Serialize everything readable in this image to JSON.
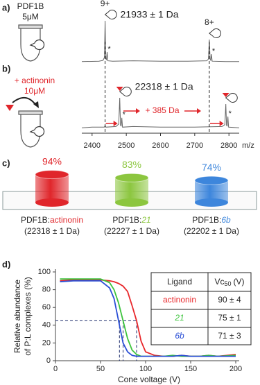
{
  "panel_labels": [
    "a)",
    "b)",
    "c)",
    "d)"
  ],
  "chart_data": [
    {
      "type": "spectrum",
      "sample": "PDF1B",
      "concentration": "5μM",
      "ligand_addition": "+ actinonin",
      "ligand_concentration": "10μM",
      "mass_shift": "+ 385 Da",
      "x_label": "m/z",
      "xlim": [
        2370,
        2830
      ],
      "xticks": [
        2400,
        2500,
        2600,
        2700,
        2800
      ],
      "spectra": [
        {
          "mass": "21933 ± 1 Da",
          "x": [
            2370,
            2420,
            2432,
            2436,
            2438,
            2440,
            2442,
            2444,
            2446,
            2460,
            2520,
            2600,
            2680,
            2735,
            2740,
            2742.6,
            2745,
            2747,
            2749,
            2751,
            2790,
            2830
          ],
          "values": [
            2,
            3,
            5,
            12,
            100,
            10,
            6,
            25,
            4,
            3,
            4,
            3,
            3,
            4,
            8,
            55,
            7,
            5,
            20,
            3,
            2,
            2
          ],
          "peaks": [
            {
              "label": "9+",
              "mz": 2438
            },
            {
              "label": "8+",
              "mz": 2742.6
            }
          ],
          "adducts": [
            {
              "label": "*",
              "mz": 2444
            },
            {
              "label": "*",
              "mz": 2749
            }
          ]
        },
        {
          "mass": "22318 ± 1 Da",
          "x": [
            2370,
            2400,
            2436,
            2438,
            2440,
            2470,
            2478,
            2480.8,
            2483,
            2485,
            2487,
            2489,
            2520,
            2600,
            2700,
            2780,
            2788,
            2790.8,
            2793,
            2795,
            2797,
            2799,
            2830
          ],
          "values": [
            2,
            3,
            3,
            6,
            3,
            4,
            8,
            50,
            6,
            5,
            18,
            3,
            4,
            3,
            3,
            4,
            7,
            40,
            6,
            5,
            20,
            3,
            2
          ],
          "peaks": [
            {
              "mz": 2480.8
            },
            {
              "mz": 2790.8
            }
          ],
          "adducts": [
            {
              "label": "*",
              "mz": 2487
            },
            {
              "label": "*",
              "mz": 2797
            }
          ]
        }
      ]
    },
    {
      "type": "bar",
      "category_prefix": "PDF1B:",
      "categories": [
        "actinonin",
        "21",
        "6b"
      ],
      "italic": [
        false,
        true,
        true
      ],
      "masses": [
        "(22318 ± 1 Da)",
        "(22227 ± 1 Da)",
        "(22202 ± 1 Da)"
      ],
      "values": [
        94,
        83,
        74
      ],
      "value_labels": [
        "94%",
        "83%",
        "74%"
      ],
      "colors": [
        "#e0262b",
        "#8cc63f",
        "#3d86dc"
      ]
    },
    {
      "type": "line",
      "x_label": "Cone voltage  (V)",
      "y_label": [
        "Relative abundance",
        "of P:L complexes (%)"
      ],
      "xlim": [
        0,
        200
      ],
      "xticks": [
        0,
        50,
        100,
        150,
        200
      ],
      "ylim": [
        0,
        100
      ],
      "yticks": [
        0,
        20,
        40,
        60,
        80,
        100
      ],
      "x": [
        5,
        20,
        40,
        50,
        60,
        65,
        70,
        75,
        80,
        85,
        90,
        95,
        100,
        110,
        120,
        130,
        140,
        150,
        160,
        170,
        180,
        200
      ],
      "series": [
        {
          "name": "actinonin",
          "color": "#e8262a",
          "italic": false,
          "values": [
            90,
            91,
            91,
            91,
            90,
            89,
            87,
            84,
            78,
            62,
            45,
            22,
            10,
            6,
            5,
            5,
            6,
            5,
            5,
            6,
            5,
            7
          ]
        },
        {
          "name": "21",
          "color": "#3cc43c",
          "italic": true,
          "values": [
            92,
            92,
            92,
            92,
            88,
            80,
            65,
            45,
            25,
            12,
            7,
            5,
            5,
            5,
            5,
            6,
            5,
            5,
            5,
            6,
            5,
            6
          ]
        },
        {
          "name": "6b",
          "color": "#2a4fd6",
          "italic": true,
          "values": [
            89,
            90,
            90,
            90,
            82,
            70,
            45,
            20,
            10,
            6,
            5,
            5,
            5,
            5,
            5,
            5,
            6,
            5,
            5,
            5,
            5,
            5
          ]
        }
      ],
      "half_level": 45,
      "vc50": [
        90,
        75,
        71
      ],
      "table": {
        "header": [
          "Ligand",
          "Vc",
          "50",
          "(V)"
        ],
        "vc50_labels": [
          "90 ± 4",
          "75 ± 1",
          "71 ± 3"
        ]
      }
    }
  ]
}
